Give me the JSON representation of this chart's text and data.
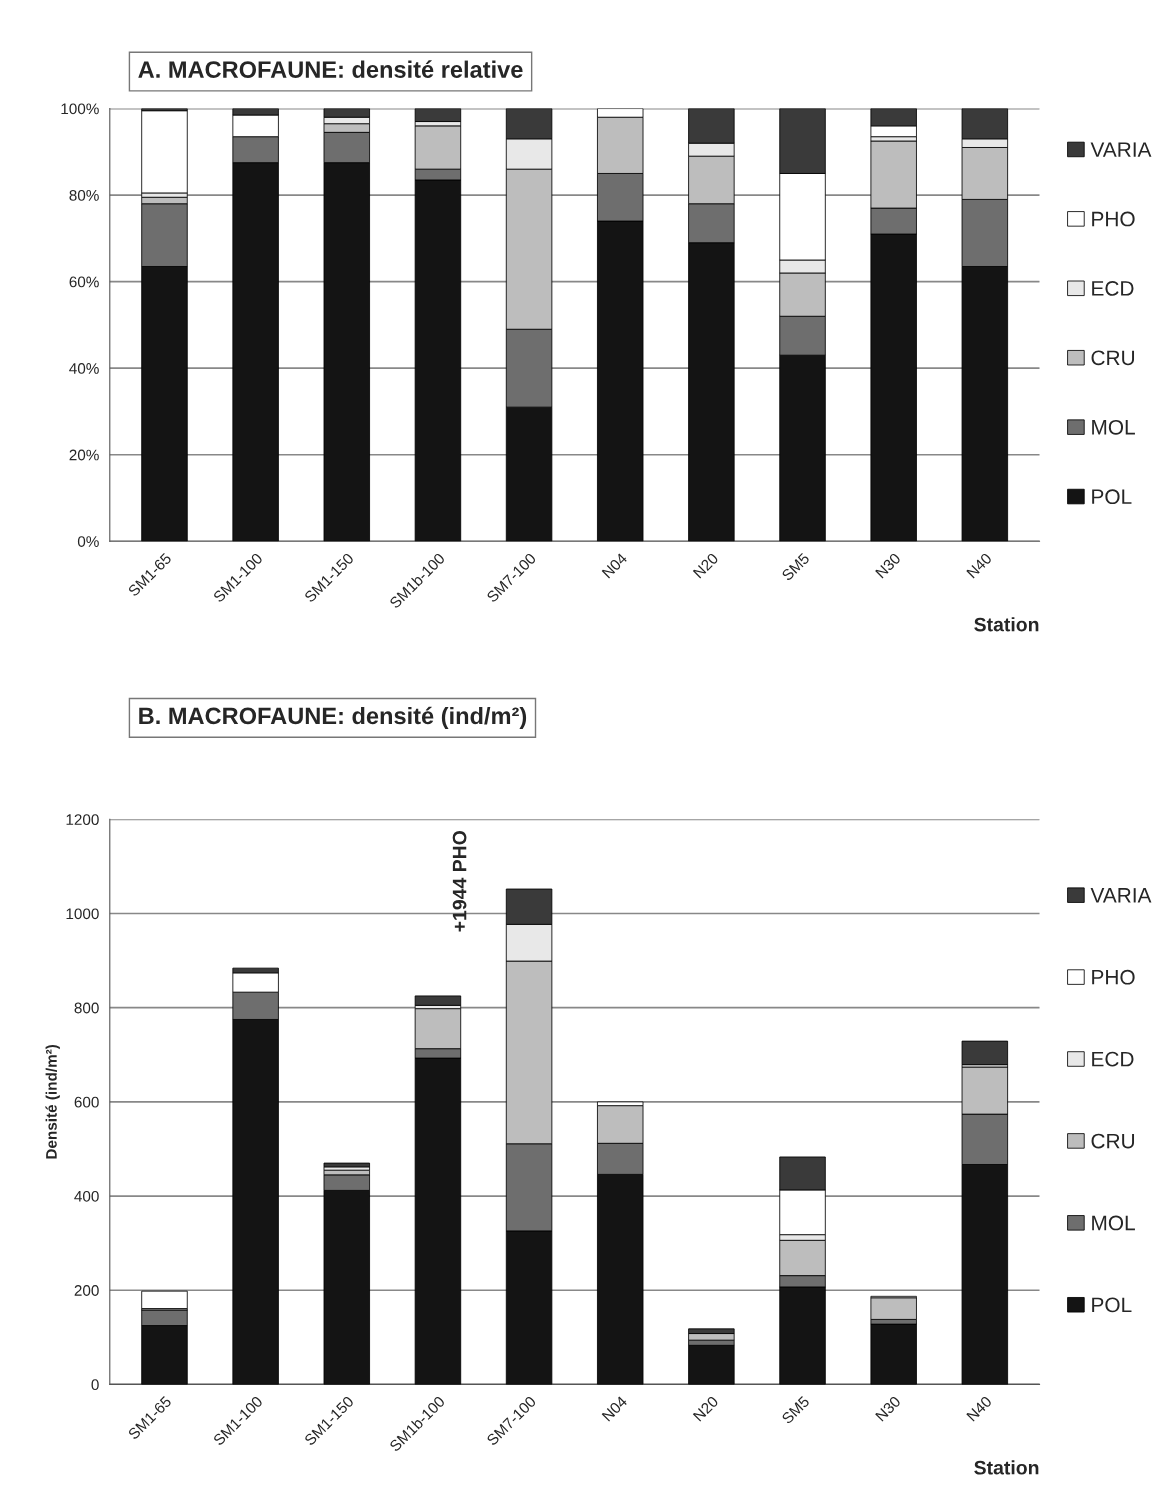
{
  "chart_data": [
    {
      "type": "bar",
      "title": "A. MACROFAUNE: densité relative",
      "xlabel": "Station",
      "stacked": true,
      "grid": "y",
      "legend": "right",
      "categories": [
        "SM1-65",
        "SM1-100",
        "SM1-150",
        "SM1b-100",
        "SM7-100",
        "N04",
        "N20",
        "SM5",
        "N30",
        "N40"
      ],
      "ylim": [
        0,
        100
      ],
      "yticks": [
        {
          "value": 0,
          "label": "0%"
        },
        {
          "value": 20,
          "label": "20%"
        },
        {
          "value": 40,
          "label": "40%"
        },
        {
          "value": 60,
          "label": "60%"
        },
        {
          "value": 80,
          "label": "80%"
        },
        {
          "value": 100,
          "label": "100%"
        }
      ],
      "series": [
        {
          "name": "POL",
          "color": "#141414",
          "values": [
            63.5,
            87.5,
            87.5,
            83.5,
            31,
            74,
            69,
            43,
            71,
            63.5
          ]
        },
        {
          "name": "MOL",
          "color": "#6e6e6e",
          "values": [
            14.5,
            6,
            7,
            2.5,
            18,
            11,
            9,
            9,
            6,
            15.5
          ]
        },
        {
          "name": "CRU",
          "color": "#bdbdbd",
          "values": [
            1.5,
            0,
            2,
            10,
            37,
            13,
            11,
            10,
            15.5,
            12
          ]
        },
        {
          "name": "ECD",
          "color": "#e8e8e8",
          "values": [
            1,
            0,
            1.5,
            1,
            7,
            0,
            3,
            3,
            1,
            2
          ]
        },
        {
          "name": "PHO",
          "color": "#ffffff",
          "values": [
            19,
            5,
            0,
            0,
            0,
            2,
            0,
            20,
            2.5,
            0
          ]
        },
        {
          "name": "VARIA",
          "color": "#3a3a3a",
          "values": [
            0.5,
            1.5,
            2,
            3,
            7,
            0,
            8,
            15,
            4,
            7
          ]
        }
      ]
    },
    {
      "type": "bar",
      "title": "B. MACROFAUNE: densité (ind/m²)",
      "xlabel": "Station",
      "ylabel": "Densité (ind/m²)",
      "stacked": true,
      "grid": "y",
      "legend": "right",
      "categories": [
        "SM1-65",
        "SM1-100",
        "SM1-150",
        "SM1b-100",
        "SM7-100",
        "N04",
        "N20",
        "SM5",
        "N30",
        "N40"
      ],
      "ylim": [
        0,
        1200
      ],
      "yticks": [
        0,
        200,
        400,
        600,
        800,
        1000,
        1200
      ],
      "annotations": [
        "+1944 PHO"
      ],
      "series": [
        {
          "name": "POL",
          "color": "#141414",
          "values": [
            125,
            775,
            412,
            693,
            326,
            446,
            83,
            207,
            128,
            467
          ]
        },
        {
          "name": "MOL",
          "color": "#6e6e6e",
          "values": [
            33,
            58,
            33,
            20,
            185,
            66,
            11,
            24,
            10,
            107
          ]
        },
        {
          "name": "CRU",
          "color": "#bdbdbd",
          "values": [
            3,
            0,
            10,
            85,
            388,
            80,
            14,
            75,
            46,
            100
          ]
        },
        {
          "name": "ECD",
          "color": "#e8e8e8",
          "values": [
            null,
            0,
            7,
            7,
            78,
            0,
            null,
            12,
            null,
            5
          ]
        },
        {
          "name": "PHO",
          "color": "#ffffff",
          "values": [
            37,
            41,
            0,
            0,
            0,
            8,
            0,
            95,
            3,
            0
          ]
        },
        {
          "name": "VARIA",
          "color": "#3a3a3a",
          "values": [
            0,
            10,
            8,
            20,
            75,
            0,
            10,
            70,
            0,
            50
          ]
        }
      ]
    }
  ]
}
